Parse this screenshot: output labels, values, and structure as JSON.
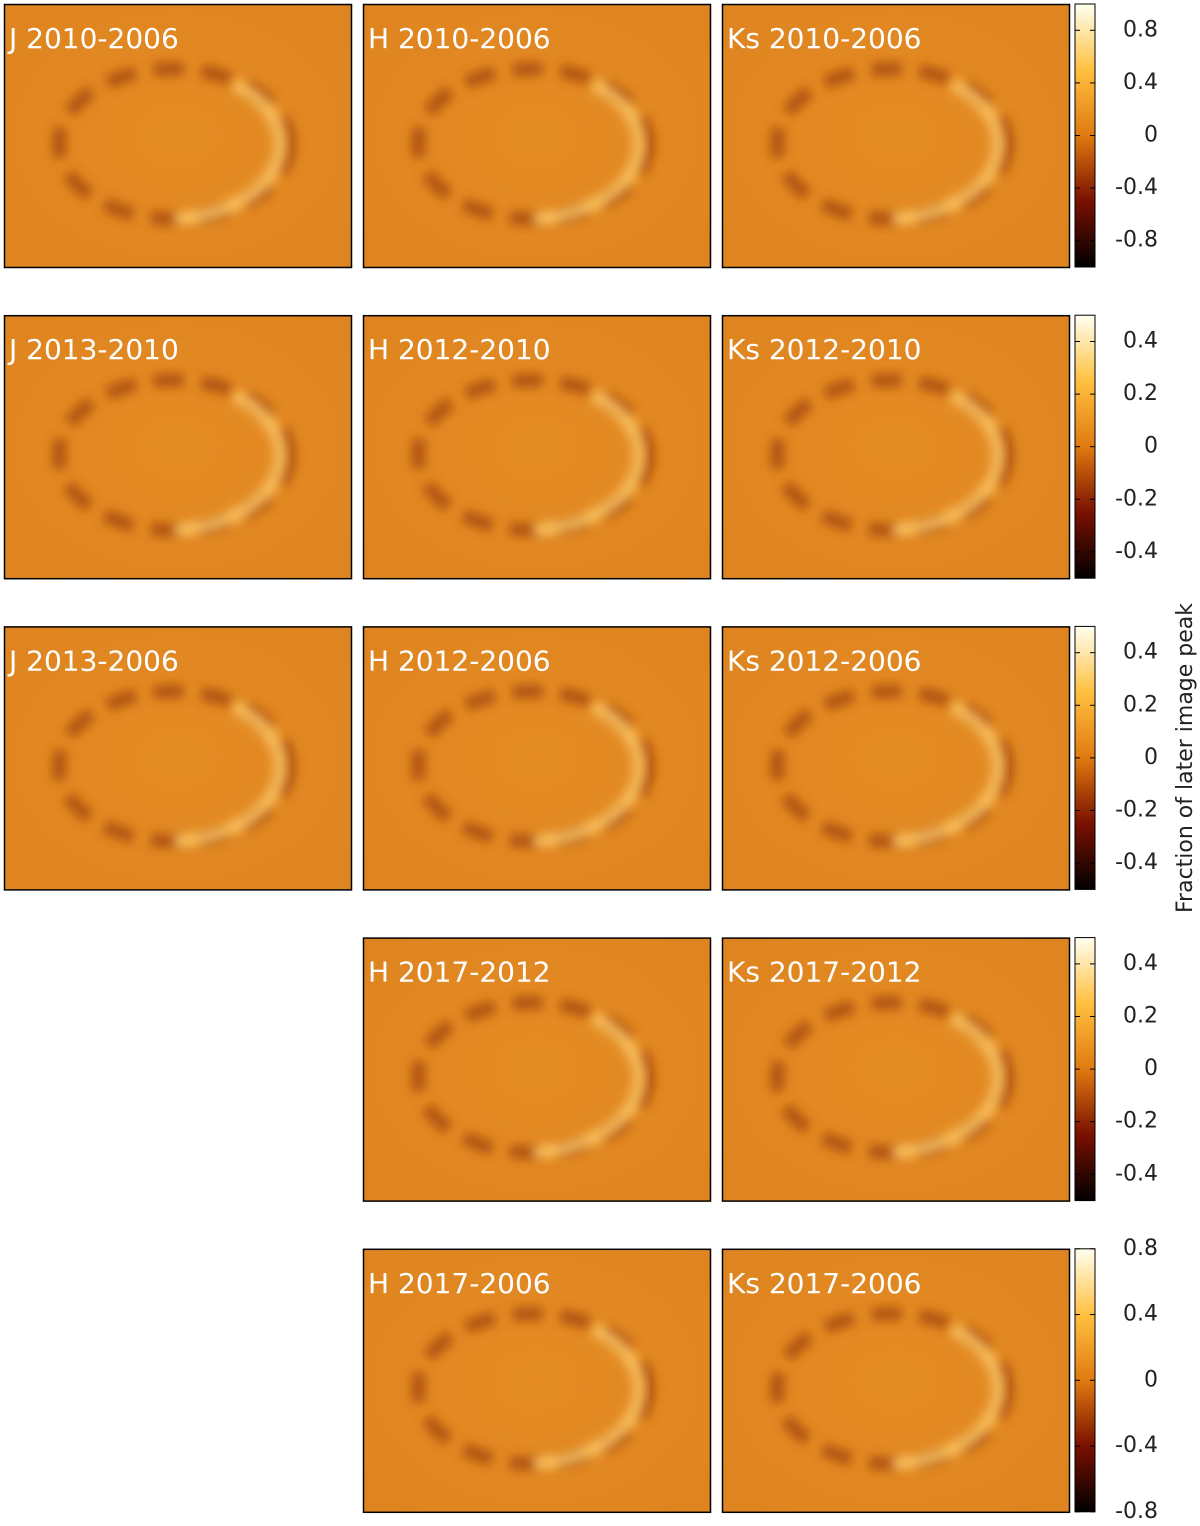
{
  "rows": [
    {
      "panels": [
        "J 2010-2006",
        "H 2010-2006",
        "Ks 2010-2006"
      ],
      "colorbar": {
        "lim": [
          -1,
          1
        ],
        "ticks": [
          0.8,
          0.4,
          0,
          -0.4,
          -0.8
        ]
      }
    },
    {
      "panels": [
        "J 2013-2010",
        "H 2012-2010",
        "Ks 2012-2010"
      ],
      "colorbar": {
        "lim": [
          -0.5,
          0.5
        ],
        "ticks": [
          0.4,
          0.2,
          0,
          -0.2,
          -0.4
        ]
      }
    },
    {
      "panels": [
        "J 2013-2006",
        "H 2012-2006",
        "Ks 2012-2006"
      ],
      "colorbar": {
        "lim": [
          -0.5,
          0.5
        ],
        "ticks": [
          0.4,
          0.2,
          0,
          -0.2,
          -0.4
        ]
      }
    },
    {
      "panels": [
        "H 2017-2012",
        "Ks 2017-2012"
      ],
      "colorbar": {
        "lim": [
          -0.5,
          0.5
        ],
        "ticks": [
          0.4,
          0.2,
          0,
          -0.2,
          -0.4
        ]
      }
    },
    {
      "panels": [
        "H 2017-2006",
        "Ks 2017-2006"
      ],
      "colorbar": {
        "lim": [
          -0.8,
          0.8
        ],
        "ticks": [
          0.8,
          0.4,
          0,
          -0.4,
          -0.8
        ]
      }
    }
  ],
  "colorbar_label": "Fraction of later image peak"
}
